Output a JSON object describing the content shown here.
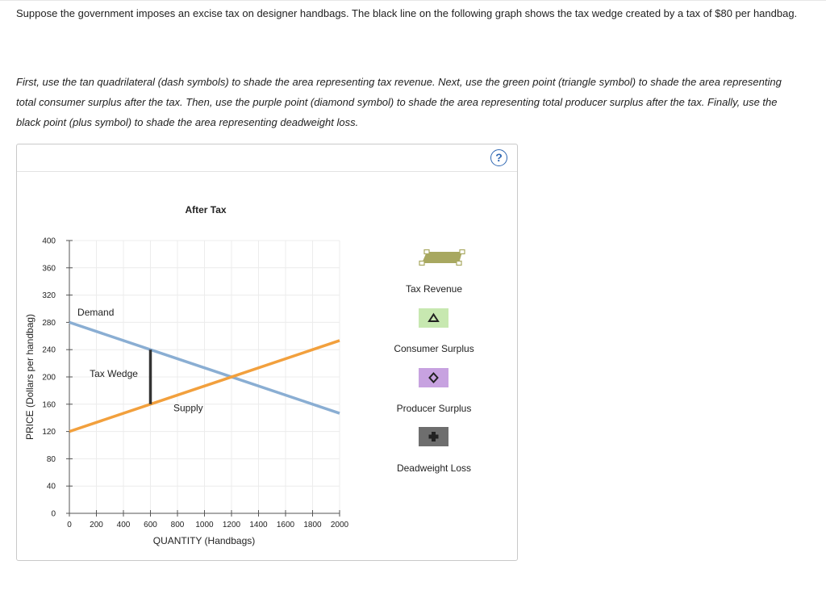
{
  "question": {
    "intro": "Suppose the government imposes an excise tax on designer handbags. The black line on the following graph shows the tax wedge created by a tax of $80 per handbag.",
    "instructions": "First, use the tan quadrilateral (dash symbols) to shade the area representing tax revenue. Next, use the green point (triangle symbol) to shade the area representing total consumer surplus after the tax. Then, use the purple point (diamond symbol) to shade the area representing total producer surplus after the tax. Finally, use the black point (plus symbol) to shade the area representing deadweight loss."
  },
  "help_symbol": "?",
  "chart_data": {
    "type": "line",
    "title": "After Tax",
    "xlabel": "QUANTITY (Handbags)",
    "ylabel": "PRICE (Dollars per handbag)",
    "xlim": [
      0,
      2000
    ],
    "ylim": [
      0,
      400
    ],
    "xticks": [
      0,
      200,
      400,
      600,
      800,
      1000,
      1200,
      1400,
      1600,
      1800,
      2000
    ],
    "yticks": [
      0,
      40,
      80,
      120,
      160,
      200,
      240,
      280,
      320,
      360,
      400
    ],
    "grid": true,
    "series": [
      {
        "name": "Demand",
        "x": [
          0,
          2000
        ],
        "y": [
          280,
          146.67
        ],
        "color": "#8aaed3"
      },
      {
        "name": "Supply",
        "x": [
          0,
          2000
        ],
        "y": [
          120,
          253.33
        ],
        "color": "#f2a03d"
      }
    ],
    "tax_wedge": {
      "label": "Tax Wedge",
      "x": 600,
      "y_low": 160,
      "y_high": 240,
      "color": "#333333"
    },
    "annotations": [
      {
        "text": "Demand",
        "x": 60,
        "y": 290
      },
      {
        "text": "Tax Wedge",
        "x": 150,
        "y": 200
      },
      {
        "text": "Supply",
        "x": 770,
        "y": 150
      }
    ]
  },
  "legend": [
    {
      "name": "Tax Revenue",
      "color": "#a8a860",
      "symbol": "dash"
    },
    {
      "name": "Consumer Surplus",
      "color": "#c7e8b0",
      "symbol": "triangle"
    },
    {
      "name": "Producer Surplus",
      "color": "#c7a2e0",
      "symbol": "diamond"
    },
    {
      "name": "Deadweight Loss",
      "color": "#6e6e6e",
      "symbol": "plus"
    }
  ]
}
